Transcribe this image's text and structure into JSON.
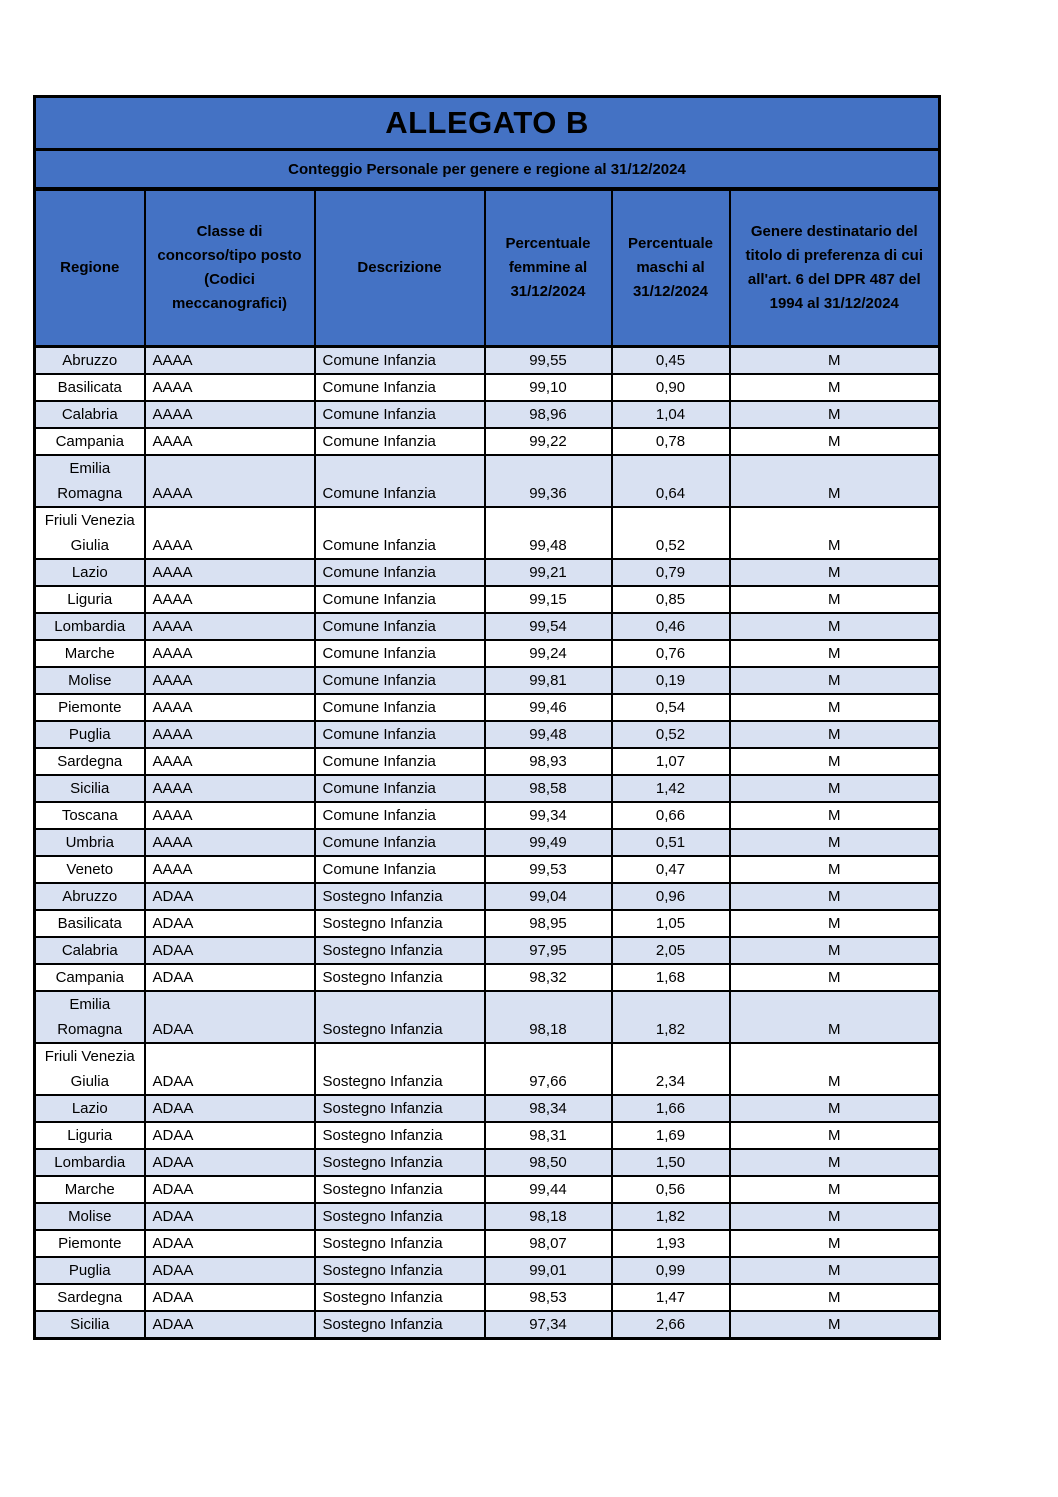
{
  "document": {
    "title": "ALLEGATO B",
    "subtitle": "Conteggio Personale per genere e regione al 31/12/2024"
  },
  "colors": {
    "header_bg": "#4472C4",
    "row_alt_bg": "#D9E1F2",
    "row_bg": "#FFFFFF",
    "border": "#000000",
    "text": "#000000"
  },
  "table": {
    "columns": [
      "Regione",
      "Classe di concorso/tipo posto (Codici meccanografici)",
      "Descrizione",
      "Percentuale femmine al 31/12/2024",
      "Percentuale maschi al 31/12/2024",
      "Genere destinatario del titolo di preferenza di cui all'art. 6 del DPR 487 del 1994 al 31/12/2024"
    ],
    "rows": [
      {
        "regione": "Abruzzo",
        "codice": "AAAA",
        "descrizione": "Comune Infanzia",
        "perc_femmine": "99,55",
        "perc_maschi": "0,45",
        "genere": "M"
      },
      {
        "regione": "Basilicata",
        "codice": "AAAA",
        "descrizione": "Comune Infanzia",
        "perc_femmine": "99,10",
        "perc_maschi": "0,90",
        "genere": "M"
      },
      {
        "regione": "Calabria",
        "codice": "AAAA",
        "descrizione": "Comune Infanzia",
        "perc_femmine": "98,96",
        "perc_maschi": "1,04",
        "genere": "M"
      },
      {
        "regione": "Campania",
        "codice": "AAAA",
        "descrizione": "Comune Infanzia",
        "perc_femmine": "99,22",
        "perc_maschi": "0,78",
        "genere": "M"
      },
      {
        "regione": "Emilia Romagna",
        "codice": "AAAA",
        "descrizione": "Comune Infanzia",
        "perc_femmine": "99,36",
        "perc_maschi": "0,64",
        "genere": "M"
      },
      {
        "regione": "Friuli Venezia Giulia",
        "codice": "AAAA",
        "descrizione": "Comune Infanzia",
        "perc_femmine": "99,48",
        "perc_maschi": "0,52",
        "genere": "M"
      },
      {
        "regione": "Lazio",
        "codice": "AAAA",
        "descrizione": "Comune Infanzia",
        "perc_femmine": "99,21",
        "perc_maschi": "0,79",
        "genere": "M"
      },
      {
        "regione": "Liguria",
        "codice": "AAAA",
        "descrizione": "Comune Infanzia",
        "perc_femmine": "99,15",
        "perc_maschi": "0,85",
        "genere": "M"
      },
      {
        "regione": "Lombardia",
        "codice": "AAAA",
        "descrizione": "Comune Infanzia",
        "perc_femmine": "99,54",
        "perc_maschi": "0,46",
        "genere": "M"
      },
      {
        "regione": "Marche",
        "codice": "AAAA",
        "descrizione": "Comune Infanzia",
        "perc_femmine": "99,24",
        "perc_maschi": "0,76",
        "genere": "M"
      },
      {
        "regione": "Molise",
        "codice": "AAAA",
        "descrizione": "Comune Infanzia",
        "perc_femmine": "99,81",
        "perc_maschi": "0,19",
        "genere": "M"
      },
      {
        "regione": "Piemonte",
        "codice": "AAAA",
        "descrizione": "Comune Infanzia",
        "perc_femmine": "99,46",
        "perc_maschi": "0,54",
        "genere": "M"
      },
      {
        "regione": "Puglia",
        "codice": "AAAA",
        "descrizione": "Comune Infanzia",
        "perc_femmine": "99,48",
        "perc_maschi": "0,52",
        "genere": "M"
      },
      {
        "regione": "Sardegna",
        "codice": "AAAA",
        "descrizione": "Comune Infanzia",
        "perc_femmine": "98,93",
        "perc_maschi": "1,07",
        "genere": "M"
      },
      {
        "regione": "Sicilia",
        "codice": "AAAA",
        "descrizione": "Comune Infanzia",
        "perc_femmine": "98,58",
        "perc_maschi": "1,42",
        "genere": "M"
      },
      {
        "regione": "Toscana",
        "codice": "AAAA",
        "descrizione": "Comune Infanzia",
        "perc_femmine": "99,34",
        "perc_maschi": "0,66",
        "genere": "M"
      },
      {
        "regione": "Umbria",
        "codice": "AAAA",
        "descrizione": "Comune Infanzia",
        "perc_femmine": "99,49",
        "perc_maschi": "0,51",
        "genere": "M"
      },
      {
        "regione": "Veneto",
        "codice": "AAAA",
        "descrizione": "Comune Infanzia",
        "perc_femmine": "99,53",
        "perc_maschi": "0,47",
        "genere": "M"
      },
      {
        "regione": "Abruzzo",
        "codice": "ADAA",
        "descrizione": "Sostegno Infanzia",
        "perc_femmine": "99,04",
        "perc_maschi": "0,96",
        "genere": "M"
      },
      {
        "regione": "Basilicata",
        "codice": "ADAA",
        "descrizione": "Sostegno Infanzia",
        "perc_femmine": "98,95",
        "perc_maschi": "1,05",
        "genere": "M"
      },
      {
        "regione": "Calabria",
        "codice": "ADAA",
        "descrizione": "Sostegno Infanzia",
        "perc_femmine": "97,95",
        "perc_maschi": "2,05",
        "genere": "M"
      },
      {
        "regione": "Campania",
        "codice": "ADAA",
        "descrizione": "Sostegno Infanzia",
        "perc_femmine": "98,32",
        "perc_maschi": "1,68",
        "genere": "M"
      },
      {
        "regione": "Emilia Romagna",
        "codice": "ADAA",
        "descrizione": "Sostegno Infanzia",
        "perc_femmine": "98,18",
        "perc_maschi": "1,82",
        "genere": "M"
      },
      {
        "regione": "Friuli Venezia Giulia",
        "codice": "ADAA",
        "descrizione": "Sostegno Infanzia",
        "perc_femmine": "97,66",
        "perc_maschi": "2,34",
        "genere": "M"
      },
      {
        "regione": "Lazio",
        "codice": "ADAA",
        "descrizione": "Sostegno Infanzia",
        "perc_femmine": "98,34",
        "perc_maschi": "1,66",
        "genere": "M"
      },
      {
        "regione": "Liguria",
        "codice": "ADAA",
        "descrizione": "Sostegno Infanzia",
        "perc_femmine": "98,31",
        "perc_maschi": "1,69",
        "genere": "M"
      },
      {
        "regione": "Lombardia",
        "codice": "ADAA",
        "descrizione": "Sostegno Infanzia",
        "perc_femmine": "98,50",
        "perc_maschi": "1,50",
        "genere": "M"
      },
      {
        "regione": "Marche",
        "codice": "ADAA",
        "descrizione": "Sostegno Infanzia",
        "perc_femmine": "99,44",
        "perc_maschi": "0,56",
        "genere": "M"
      },
      {
        "regione": "Molise",
        "codice": "ADAA",
        "descrizione": "Sostegno Infanzia",
        "perc_femmine": "98,18",
        "perc_maschi": "1,82",
        "genere": "M"
      },
      {
        "regione": "Piemonte",
        "codice": "ADAA",
        "descrizione": "Sostegno Infanzia",
        "perc_femmine": "98,07",
        "perc_maschi": "1,93",
        "genere": "M"
      },
      {
        "regione": "Puglia",
        "codice": "ADAA",
        "descrizione": "Sostegno Infanzia",
        "perc_femmine": "99,01",
        "perc_maschi": "0,99",
        "genere": "M"
      },
      {
        "regione": "Sardegna",
        "codice": "ADAA",
        "descrizione": "Sostegno Infanzia",
        "perc_femmine": "98,53",
        "perc_maschi": "1,47",
        "genere": "M"
      },
      {
        "regione": "Sicilia",
        "codice": "ADAA",
        "descrizione": "Sostegno Infanzia",
        "perc_femmine": "97,34",
        "perc_maschi": "2,66",
        "genere": "M"
      }
    ]
  }
}
